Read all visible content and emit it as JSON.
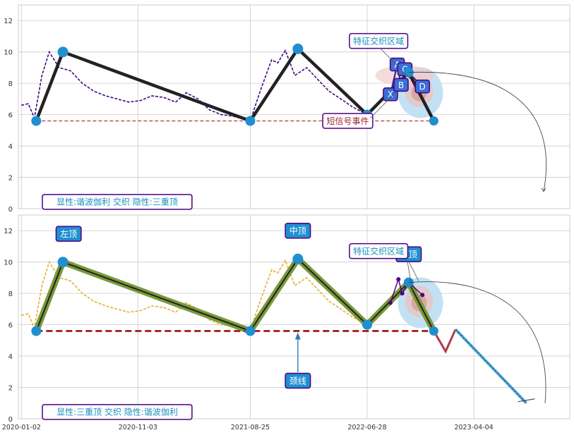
{
  "colors": {
    "price_top": "#3f0a7d",
    "price_bottom": "#e8b030",
    "pattern_line": "#222222",
    "pattern_fill": "#7a9a3a",
    "neckline_top": "#c0392b",
    "neckline_bottom": "#a52a2a",
    "pivot": "#1f8fd0",
    "label_box": "#1f8fd0",
    "label_text": "#ffffff",
    "annot_border": "#4b0082",
    "annot_text_cyan": "#1a8fc0",
    "annot_text_red": "#a0243a",
    "grid": "#cccccc"
  },
  "chart_data": [
    {
      "type": "line",
      "panel": "top",
      "ylim": [
        0,
        13
      ],
      "yticks": [
        "0",
        "2",
        "4",
        "6",
        "8",
        "10",
        "12"
      ],
      "series": [
        {
          "role": "price",
          "x": [
            "2020-01-02",
            "2020-01-20",
            "2020-02-05",
            "2020-02-25",
            "2020-03-15",
            "2020-04-10",
            "2020-05-10",
            "2020-06-10",
            "2020-07-10",
            "2020-08-10",
            "2020-09-10",
            "2020-10-10",
            "2020-11-10",
            "2020-12-10",
            "2021-01-10",
            "2021-02-10",
            "2021-03-10",
            "2021-04-10",
            "2021-05-10",
            "2021-06-10",
            "2021-07-10",
            "2021-08-10",
            "2021-08-25",
            "2021-09-20",
            "2021-10-20",
            "2021-11-05",
            "2021-11-25",
            "2021-12-20",
            "2022-01-20",
            "2022-02-20",
            "2022-03-20",
            "2022-04-20",
            "2022-05-20",
            "2022-06-20",
            "2022-07-05"
          ],
          "y": [
            6.6,
            6.7,
            5.8,
            8.5,
            10.0,
            9.0,
            8.8,
            8.0,
            7.5,
            7.2,
            7.0,
            6.8,
            6.9,
            7.2,
            7.1,
            6.8,
            7.4,
            7.0,
            6.3,
            6.0,
            5.9,
            5.7,
            5.6,
            7.5,
            9.5,
            9.3,
            10.1,
            8.5,
            9.0,
            8.2,
            7.5,
            7.0,
            6.5,
            6.1,
            6.0
          ]
        }
      ],
      "pivots": {
        "x": [
          "2020-02-10",
          "2020-04-20",
          "2021-08-25",
          "2021-12-28",
          "2022-06-28",
          "2022-10-15",
          "2022-12-20"
        ],
        "y": [
          5.6,
          10.0,
          5.6,
          10.2,
          6.0,
          8.7,
          5.6
        ]
      },
      "harmonic_points": [
        {
          "label": "X",
          "x": "2022-08-28",
          "y": 7.3
        },
        {
          "label": "A",
          "x": "2022-09-15",
          "y": 9.2
        },
        {
          "label": "B",
          "x": "2022-09-25",
          "y": 7.9
        },
        {
          "label": "C",
          "x": "2022-10-05",
          "y": 8.9
        },
        {
          "label": "D",
          "x": "2022-11-20",
          "y": 7.8
        }
      ],
      "neckline": {
        "x": [
          "2020-02-10",
          "2022-12-08"
        ],
        "y": [
          5.6,
          5.6
        ]
      },
      "annotations": [
        {
          "text": "特征交织区域",
          "x": "2022-07-28",
          "y": 10.7
        },
        {
          "text": "短信号事件",
          "x": "2022-05-08",
          "y": 5.6
        },
        {
          "text": "显性:谐波伽利 交织 隐性:三重顶",
          "x": "2020-01-05",
          "y": 0.3
        }
      ]
    },
    {
      "type": "line",
      "panel": "bottom",
      "ylim": [
        0,
        13
      ],
      "yticks": [
        "0",
        "2",
        "4",
        "6",
        "8",
        "10",
        "12"
      ],
      "xticks": [
        "2020-01-02",
        "2020-11-03",
        "2021-08-25",
        "2022-06-28",
        "2023-04-04"
      ],
      "series": [
        {
          "role": "price",
          "x": [
            "2020-01-02",
            "2020-01-20",
            "2020-02-05",
            "2020-02-25",
            "2020-03-15",
            "2020-04-10",
            "2020-05-10",
            "2020-06-10",
            "2020-07-10",
            "2020-08-10",
            "2020-09-10",
            "2020-10-10",
            "2020-11-10",
            "2020-12-10",
            "2021-01-10",
            "2021-02-10",
            "2021-03-10",
            "2021-04-10",
            "2021-05-10",
            "2021-06-10",
            "2021-07-10",
            "2021-08-10",
            "2021-08-25",
            "2021-09-20",
            "2021-10-20",
            "2021-11-05",
            "2021-11-25",
            "2021-12-20",
            "2022-01-20",
            "2022-02-20",
            "2022-03-20",
            "2022-04-20",
            "2022-05-20",
            "2022-06-20",
            "2022-07-05"
          ],
          "y": [
            6.6,
            6.7,
            5.8,
            8.5,
            10.0,
            9.0,
            8.8,
            8.0,
            7.5,
            7.2,
            7.0,
            6.8,
            6.9,
            7.2,
            7.1,
            6.8,
            7.4,
            7.0,
            6.3,
            6.0,
            5.9,
            5.7,
            5.6,
            7.5,
            9.5,
            9.3,
            10.1,
            8.5,
            9.0,
            8.2,
            7.5,
            7.0,
            6.5,
            6.1,
            6.0
          ]
        }
      ],
      "pivots": {
        "x": [
          "2020-02-10",
          "2020-04-20",
          "2021-08-25",
          "2021-12-28",
          "2022-06-28",
          "2022-10-15",
          "2022-12-20"
        ],
        "y": [
          5.6,
          10.0,
          5.6,
          10.2,
          6.0,
          8.7,
          5.6
        ]
      },
      "projection": {
        "x": [
          "2022-12-20",
          "2023-01-20",
          "2023-02-15",
          "2023-08-20"
        ],
        "y": [
          5.6,
          4.3,
          5.7,
          1.0
        ]
      },
      "neckline": {
        "x": [
          "2020-02-10",
          "2022-12-08"
        ],
        "y": [
          5.6,
          5.6
        ]
      },
      "annotations": [
        {
          "text": "左顶",
          "x": "2020-05-05",
          "y": 11.8
        },
        {
          "text": "中顶",
          "x": "2021-12-28",
          "y": 12.0
        },
        {
          "text": "右顶",
          "x": "2022-10-15",
          "y": 10.5
        },
        {
          "text": "颈线",
          "x": "2021-12-28",
          "y": 3.6
        },
        {
          "text": "特征交织区域",
          "x": "2022-07-28",
          "y": 10.7
        },
        {
          "text": "显性:三重顶 交织 隐性:谐波伽利",
          "x": "2020-01-05",
          "y": 0.3
        }
      ]
    }
  ]
}
